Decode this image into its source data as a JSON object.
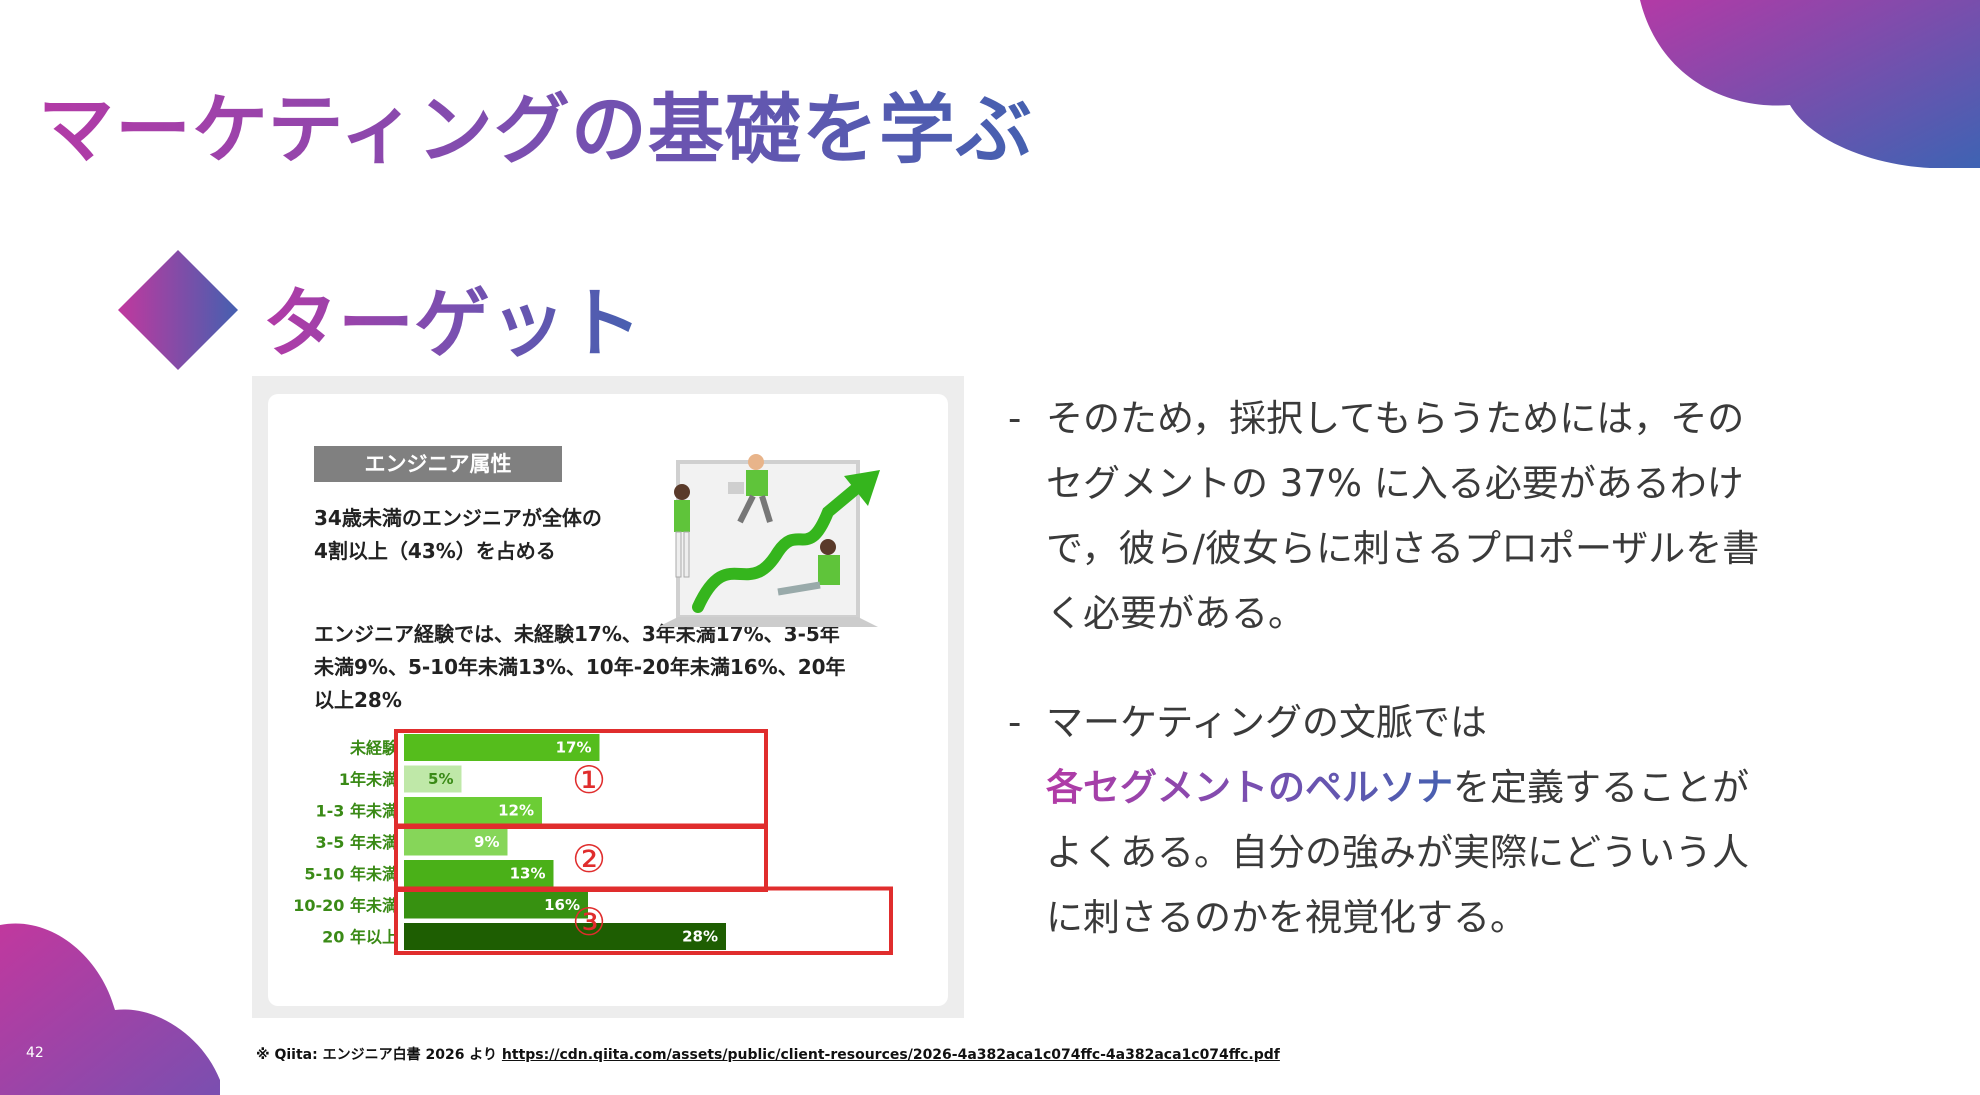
{
  "slide": {
    "title": "マーケティングの基礎を学ぶ",
    "section_heading": "ターゲット",
    "page_number": "42",
    "colors": {
      "gradient_start": "#b33aa6",
      "gradient_mid": "#7a4fb0",
      "gradient_end": "#4560b0",
      "highlight_box": "#e02d2d"
    }
  },
  "figure": {
    "tag": "エンジニア属性",
    "headline": "34歳未満のエンジニアが全体の\n4割以上（43%）を占める",
    "detail": "エンジニア経験では、未経験17%、3年未満17%、3-5年\n未満9%、5-10年未満13%、10年-20年未満16%、20年\n以上28%",
    "groups": [
      "①",
      "②",
      "③"
    ]
  },
  "chart_data": {
    "type": "bar",
    "orientation": "horizontal",
    "categories": [
      "未経験",
      "1年未満",
      "1-3 年未満",
      "3-5 年未満",
      "5-10 年未満",
      "10-20 年未満",
      "20 年以上"
    ],
    "values": [
      17,
      5,
      12,
      9,
      13,
      16,
      28
    ],
    "value_labels": [
      "17%",
      "5%",
      "12%",
      "9%",
      "13%",
      "16%",
      "28%"
    ],
    "colors": [
      "#55bd1c",
      "#bfe8a8",
      "#6ccd35",
      "#86d659",
      "#4ab018",
      "#379111",
      "#1e5e02"
    ],
    "group_ranges": [
      [
        0,
        2
      ],
      [
        3,
        4
      ],
      [
        5,
        6
      ]
    ]
  },
  "bullets": [
    {
      "dash": "-",
      "text": "そのため，採択してもらうためには，その\nセグメントの 37% に入る必要があるわけ\nで，彼ら/彼女らに刺さるプロポーザルを書\nく必要がある。"
    },
    {
      "dash": "-",
      "line1": "マーケティングの文脈では",
      "highlight": "各セグメントのペルソナ",
      "rest": "を定義することが\nよくある。自分の強みが実際にどういう人\nに刺さるのかを視覚化する。"
    }
  ],
  "source": {
    "prefix": "※ Qiita: エンジニア白書 2026 より",
    "url": "https://cdn.qiita.com/assets/public/client-resources/2026-4a382aca1c074ffc-4a382aca1c074ffc.pdf"
  }
}
